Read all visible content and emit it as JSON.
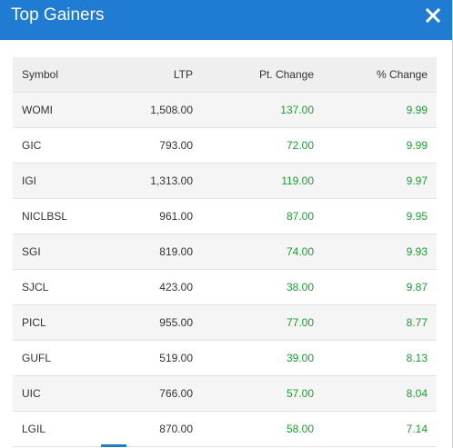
{
  "modal": {
    "title": "Top Gainers",
    "close_icon": "close-icon"
  },
  "colors": {
    "header_bg": "#1f7cd2",
    "positive": "#1e9b33",
    "row_alt": "#f5f5f5",
    "table_header_bg": "#efefef"
  },
  "table": {
    "headers": {
      "symbol": "Symbol",
      "ltp": "LTP",
      "pt_change": "Pt. Change",
      "pct_change": "% Change"
    },
    "rows": [
      {
        "symbol": "WOMI",
        "ltp": "1,508.00",
        "pt_change": "137.00",
        "pct_change": "9.99"
      },
      {
        "symbol": "GIC",
        "ltp": "793.00",
        "pt_change": "72.00",
        "pct_change": "9.99"
      },
      {
        "symbol": "IGI",
        "ltp": "1,313.00",
        "pt_change": "119.00",
        "pct_change": "9.97"
      },
      {
        "symbol": "NICLBSL",
        "ltp": "961.00",
        "pt_change": "87.00",
        "pct_change": "9.95"
      },
      {
        "symbol": "SGI",
        "ltp": "819.00",
        "pt_change": "74.00",
        "pct_change": "9.93"
      },
      {
        "symbol": "SJCL",
        "ltp": "423.00",
        "pt_change": "38.00",
        "pct_change": "9.87"
      },
      {
        "symbol": "PICL",
        "ltp": "955.00",
        "pt_change": "77.00",
        "pct_change": "8.77"
      },
      {
        "symbol": "GUFL",
        "ltp": "519.00",
        "pt_change": "39.00",
        "pct_change": "8.13"
      },
      {
        "symbol": "UIC",
        "ltp": "766.00",
        "pt_change": "57.00",
        "pct_change": "8.04"
      },
      {
        "symbol": "LGIL",
        "ltp": "870.00",
        "pt_change": "58.00",
        "pct_change": "7.14"
      }
    ]
  }
}
